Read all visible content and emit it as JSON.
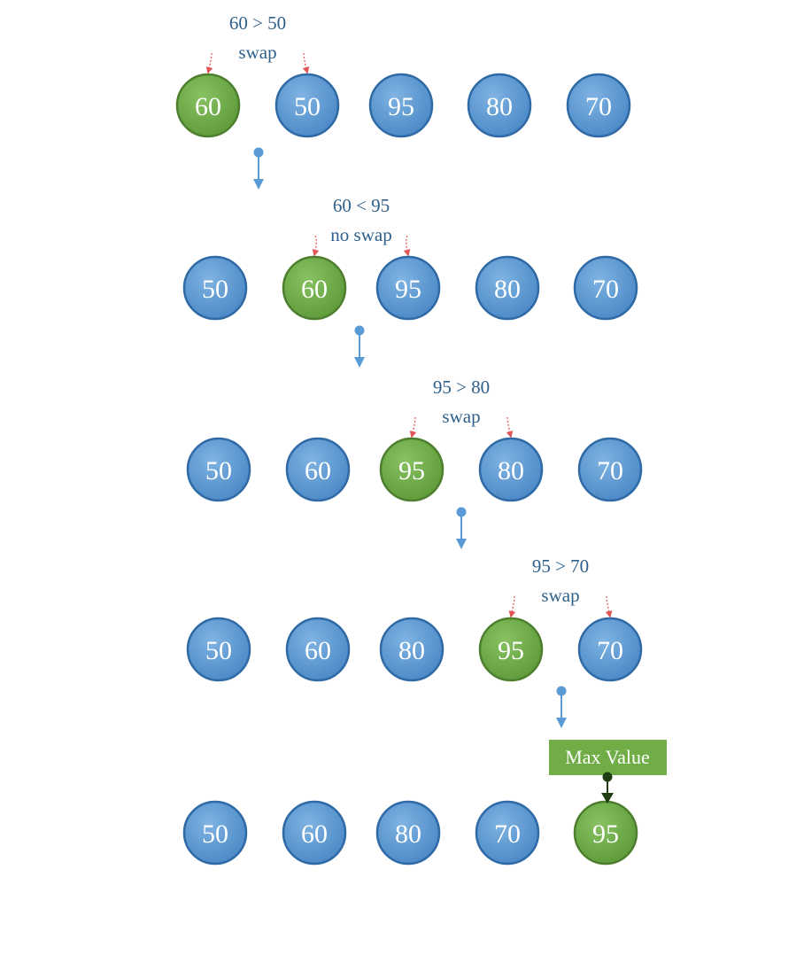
{
  "colors": {
    "node_blue": "#5b9bd5",
    "node_blue_edge": "#2f6aa6",
    "node_green": "#70ad47",
    "node_green_edge": "#4d7f2f",
    "arrow_blue": "#5b9bd5",
    "arrow_red": "#e05555",
    "label_text": "#2e5f8a",
    "max_box": "#70ad47",
    "max_arrow": "#1f3d12"
  },
  "rows": [
    {
      "values": [
        "60",
        "50",
        "95",
        "80",
        "70"
      ],
      "highlight": 0,
      "comparison": {
        "line1": "60 > 50",
        "line2": "swap",
        "left": 0,
        "right": 1
      }
    },
    {
      "values": [
        "50",
        "60",
        "95",
        "80",
        "70"
      ],
      "highlight": 1,
      "comparison": {
        "line1": "60 < 95",
        "line2": "no swap",
        "left": 1,
        "right": 2
      }
    },
    {
      "values": [
        "50",
        "60",
        "95",
        "80",
        "70"
      ],
      "highlight": 2,
      "comparison": {
        "line1": "95 > 80",
        "line2": "swap",
        "left": 2,
        "right": 3
      }
    },
    {
      "values": [
        "50",
        "60",
        "80",
        "95",
        "70"
      ],
      "highlight": 3,
      "comparison": {
        "line1": "95 > 70",
        "line2": "swap",
        "left": 3,
        "right": 4
      }
    },
    {
      "values": [
        "50",
        "60",
        "80",
        "70",
        "95"
      ],
      "highlight": 4
    }
  ],
  "max_label": "Max Value"
}
